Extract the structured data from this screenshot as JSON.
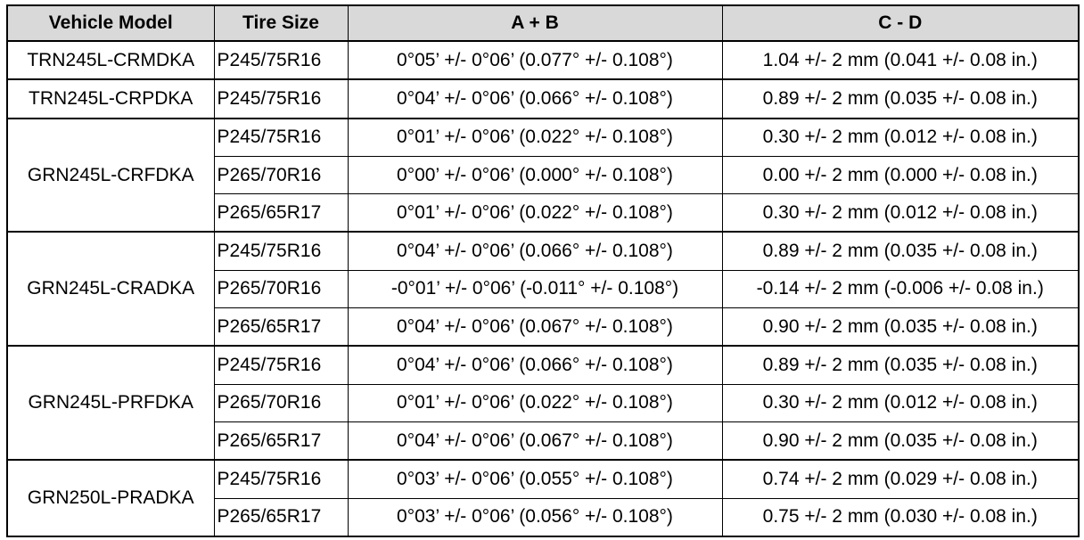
{
  "table": {
    "header": [
      "Vehicle Model",
      "Tire Size",
      "A + B",
      "C - D"
    ],
    "groups": [
      {
        "model": "TRN245L-CRMDKA",
        "rows": [
          [
            "P245/75R16",
            "0°05’ +/- 0°06’ (0.077° +/- 0.108°)",
            "1.04 +/- 2 mm (0.041 +/- 0.08 in.)"
          ]
        ]
      },
      {
        "model": "TRN245L-CRPDKA",
        "rows": [
          [
            "P245/75R16",
            "0°04’ +/- 0°06’ (0.066° +/- 0.108°)",
            "0.89 +/- 2 mm (0.035 +/- 0.08 in.)"
          ]
        ]
      },
      {
        "model": "GRN245L-CRFDKA",
        "rows": [
          [
            "P245/75R16",
            "0°01’ +/- 0°06’ (0.022° +/- 0.108°)",
            "0.30 +/- 2 mm (0.012 +/- 0.08 in.)"
          ],
          [
            "P265/70R16",
            "0°00’ +/- 0°06’ (0.000° +/- 0.108°)",
            "0.00 +/- 2 mm (0.000 +/- 0.08 in.)"
          ],
          [
            "P265/65R17",
            "0°01’ +/- 0°06’ (0.022° +/- 0.108°)",
            "0.30 +/- 2 mm (0.012 +/- 0.08 in.)"
          ]
        ]
      },
      {
        "model": "GRN245L-CRADKA",
        "rows": [
          [
            "P245/75R16",
            "0°04’ +/- 0°06’ (0.066° +/- 0.108°)",
            "0.89 +/- 2 mm (0.035 +/- 0.08 in.)"
          ],
          [
            "P265/70R16",
            "-0°01’ +/- 0°06’ (-0.011° +/- 0.108°)",
            "-0.14 +/- 2 mm (-0.006 +/- 0.08 in.)"
          ],
          [
            "P265/65R17",
            "0°04’ +/- 0°06’ (0.067° +/- 0.108°)",
            "0.90 +/- 2 mm (0.035 +/- 0.08 in.)"
          ]
        ]
      },
      {
        "model": "GRN245L-PRFDKA",
        "rows": [
          [
            "P245/75R16",
            "0°04’ +/- 0°06’ (0.066° +/- 0.108°)",
            "0.89 +/- 2 mm (0.035 +/- 0.08 in.)"
          ],
          [
            "P265/70R16",
            "0°01’ +/- 0°06’ (0.022° +/- 0.108°)",
            "0.30 +/- 2 mm (0.012 +/- 0.08 in.)"
          ],
          [
            "P265/65R17",
            "0°04’ +/- 0°06’ (0.067° +/- 0.108°)",
            "0.90 +/- 2 mm (0.035 +/- 0.08 in.)"
          ]
        ]
      },
      {
        "model": "GRN250L-PRADKA",
        "rows": [
          [
            "P245/75R16",
            "0°03’ +/- 0°06’ (0.055° +/- 0.108°)",
            "0.74 +/- 2 mm (0.029 +/- 0.08 in.)"
          ],
          [
            "P265/65R17",
            "0°03’ +/- 0°06’ (0.056° +/- 0.108°)",
            "0.75 +/- 2 mm (0.030 +/- 0.08 in.)"
          ]
        ]
      }
    ]
  }
}
